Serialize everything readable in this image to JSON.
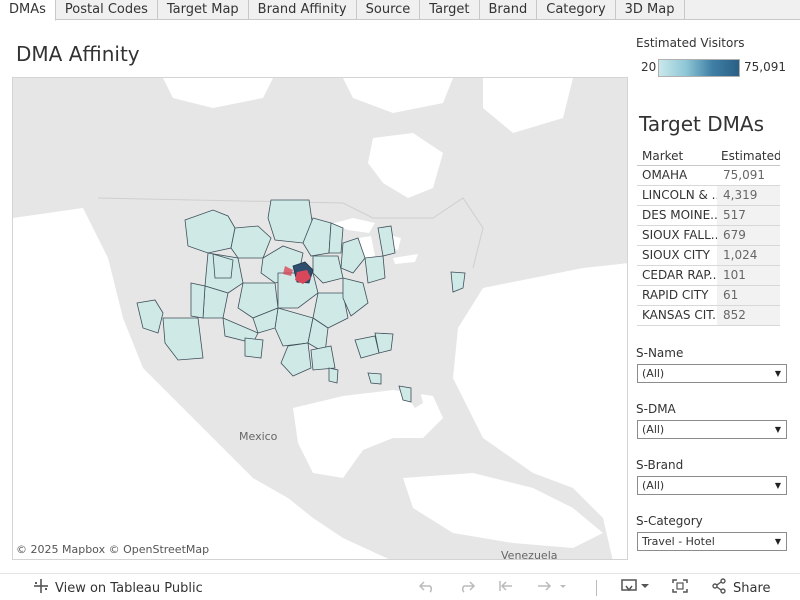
{
  "tabs": [
    "DMAs",
    "Postal Codes",
    "Target Map",
    "Brand Affinity",
    "Source",
    "Target",
    "Brand",
    "Category",
    "3D Map"
  ],
  "active_tab": "DMAs",
  "dashboard_title": "DMA Affinity",
  "map": {
    "attribution": "© 2025 Mapbox  © OpenStreetMap",
    "labels": {
      "mexico": "Mexico",
      "venezuela": "Venezuela"
    },
    "fill_color": "#cfe9e6",
    "highlight_color": "#d9475a",
    "dark_dma_color": "#2f4d6e",
    "land_color": "#e6e6e6",
    "water_color": "#ffffff"
  },
  "legend": {
    "title": "Estimated Visitors",
    "min": "20",
    "max": "75,091",
    "colors": [
      "#c9e8ea",
      "#2b5f84"
    ]
  },
  "target_dmas": {
    "title": "Target DMAs",
    "columns": [
      "Market",
      "Estimated"
    ],
    "rows": [
      {
        "market": "OMAHA",
        "value": "75,091"
      },
      {
        "market": "LINCOLN & ..",
        "value": "4,319"
      },
      {
        "market": "DES MOINE..",
        "value": "517"
      },
      {
        "market": "SIOUX FALL..",
        "value": "679"
      },
      {
        "market": "SIOUX CITY",
        "value": "1,024"
      },
      {
        "market": "CEDAR RAP..",
        "value": "101"
      },
      {
        "market": "RAPID CITY",
        "value": "61"
      },
      {
        "market": "KANSAS CIT..",
        "value": "852"
      }
    ]
  },
  "filters": [
    {
      "label": "S-Name",
      "value": "(All)"
    },
    {
      "label": "S-DMA",
      "value": "(All)"
    },
    {
      "label": "S-Brand",
      "value": "(All)"
    },
    {
      "label": "S-Category",
      "value": "Travel - Hotel"
    }
  ],
  "toolbar": {
    "view_label": "View on Tableau Public",
    "share_label": "Share",
    "icons": [
      "tableau-logo-icon",
      "undo-icon",
      "redo-icon",
      "revert-icon",
      "refresh-icon",
      "pause-icon",
      "download-icon",
      "fullscreen-icon",
      "share-icon"
    ]
  }
}
